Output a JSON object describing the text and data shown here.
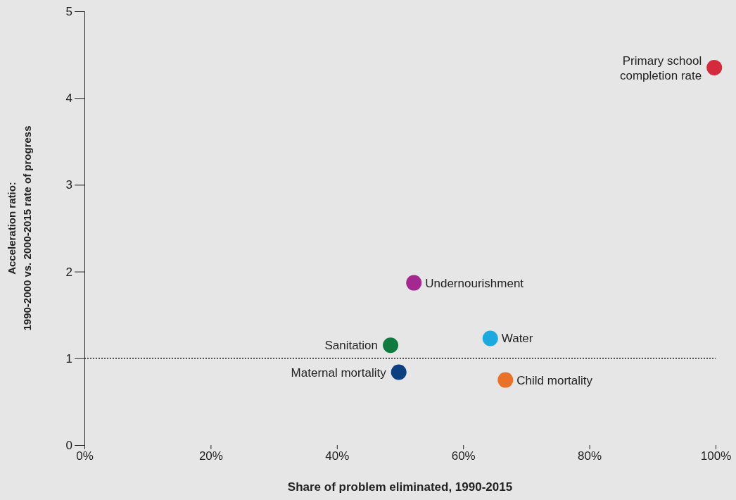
{
  "chart_data": {
    "type": "scatter",
    "xlabel": "Share of problem eliminated, 1990-2015",
    "ylabel": "Acceleration ratio:\n1990-2000 vs. 2000-2015 rate of progress",
    "xlim": [
      0,
      100
    ],
    "ylim": [
      0,
      5
    ],
    "xticks": [
      {
        "value": 0,
        "label": "0%"
      },
      {
        "value": 20,
        "label": "20%"
      },
      {
        "value": 40,
        "label": "40%"
      },
      {
        "value": 60,
        "label": "60%"
      },
      {
        "value": 80,
        "label": "80%"
      },
      {
        "value": 100,
        "label": "100%"
      }
    ],
    "yticks": [
      0,
      1,
      2,
      3,
      4,
      5
    ],
    "marker": "circle",
    "ref_lines": [
      {
        "axis": "y",
        "value": 1,
        "line_style": "dotted",
        "color": "#1a1a1a"
      }
    ],
    "series": [
      {
        "name": "Primary school completion rate",
        "color": "#d42a3c",
        "x": [
          99.8
        ],
        "values": [
          4.35
        ]
      },
      {
        "name": "Undernourishment",
        "color": "#a3288f",
        "x": [
          52.2
        ],
        "values": [
          1.87
        ]
      },
      {
        "name": "Water",
        "color": "#1ba9e0",
        "x": [
          64.3
        ],
        "values": [
          1.23
        ]
      },
      {
        "name": "Sanitation",
        "color": "#0e7a3f",
        "x": [
          48.5
        ],
        "values": [
          1.15
        ]
      },
      {
        "name": "Maternal mortality",
        "color": "#0b3f7f",
        "x": [
          49.8
        ],
        "values": [
          0.84
        ]
      },
      {
        "name": "Child mortality",
        "color": "#e8722a",
        "x": [
          66.7
        ],
        "values": [
          0.75
        ]
      }
    ]
  }
}
